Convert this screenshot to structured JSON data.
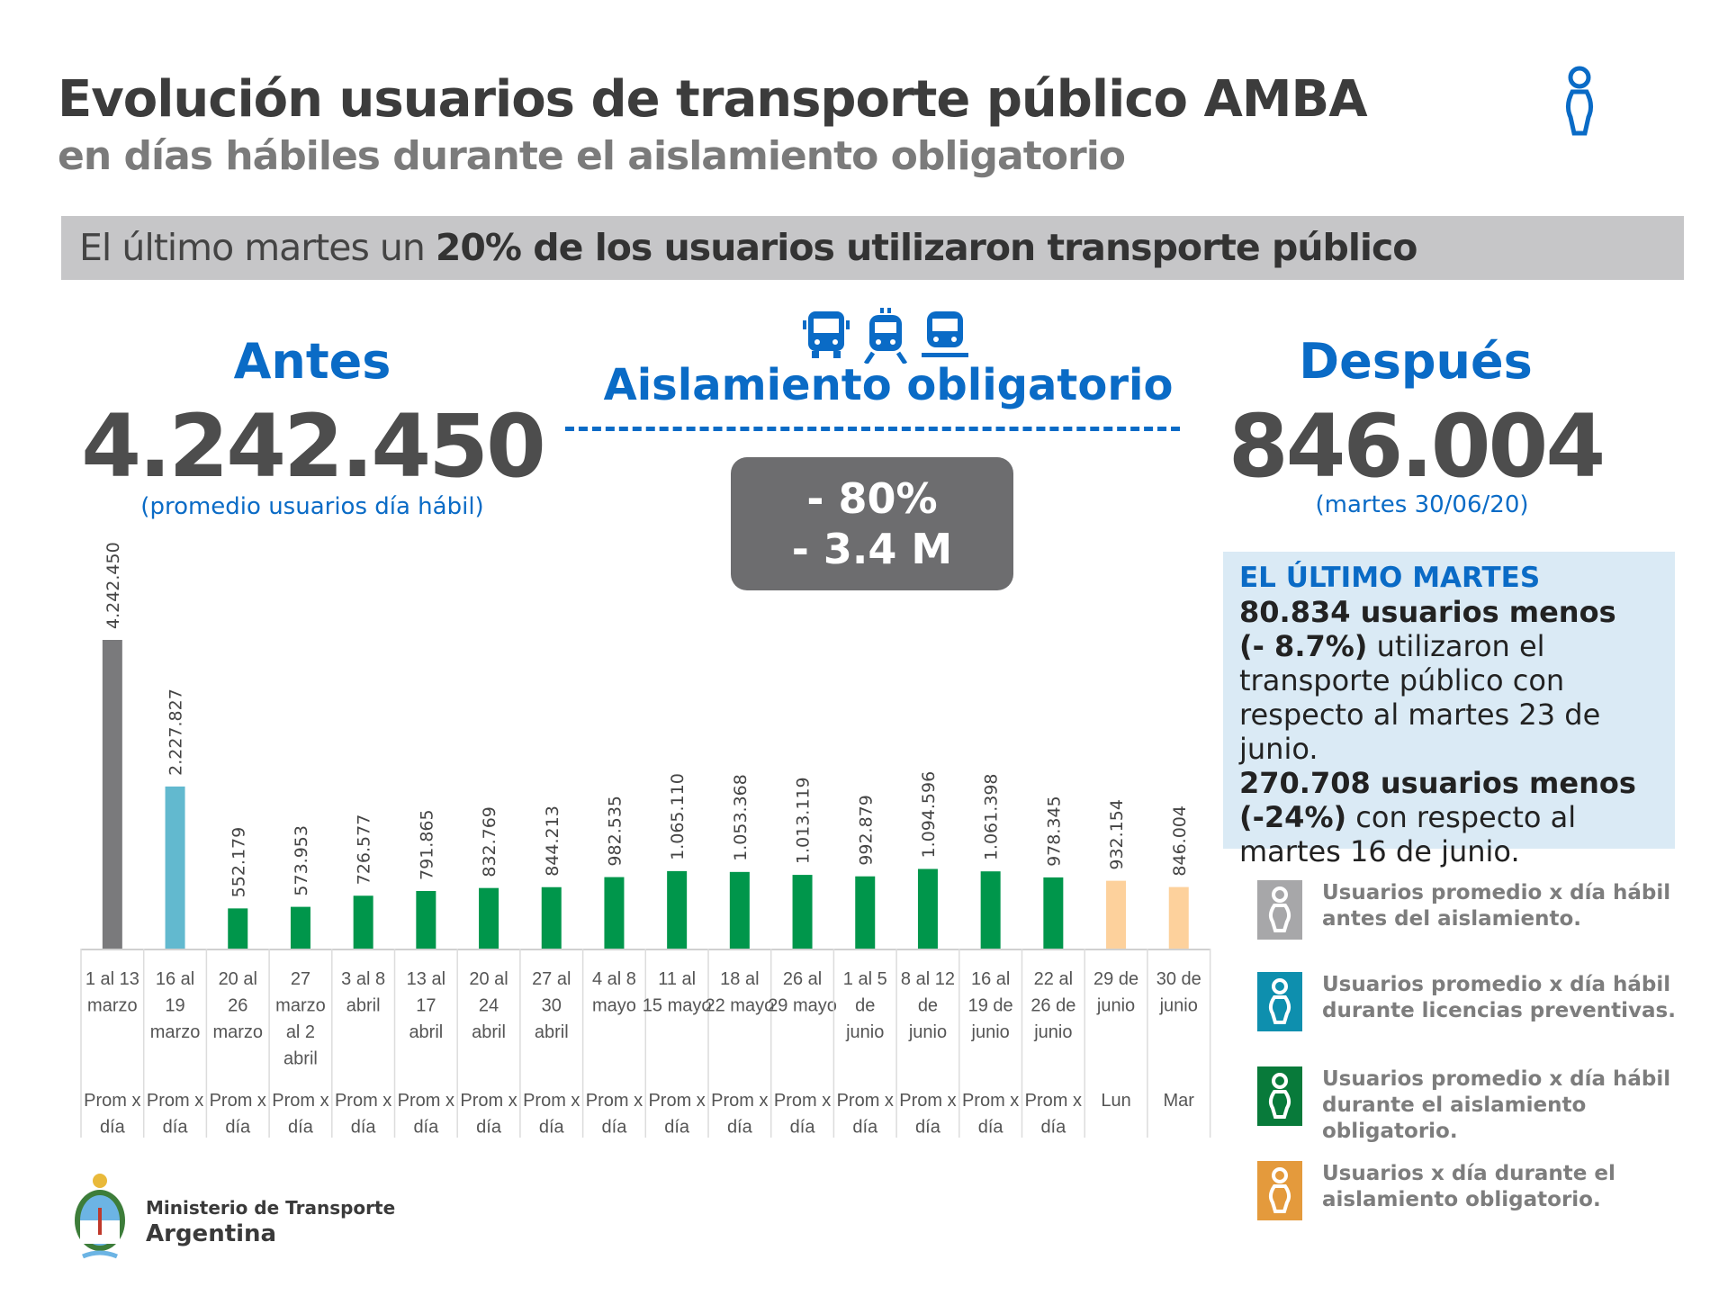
{
  "header": {
    "title": "Evolución usuarios de transporte público AMBA",
    "subtitle": "en días hábiles durante el aislamiento obligatorio"
  },
  "banner": {
    "prefix": "El último martes un ",
    "bold": "20% de los usuarios utilizaron transporte público"
  },
  "antes": {
    "label": "Antes",
    "value": "4.242.450",
    "note": "(promedio usuarios día hábil)"
  },
  "middle": {
    "label": "Aislamiento obligatorio",
    "pct": "- 80%",
    "abs": "- 3.4 M",
    "icons": [
      "bus-icon",
      "train-icon",
      "tram-icon"
    ]
  },
  "despues": {
    "label": "Después",
    "value": "846.004",
    "note": "(martes 30/06/20)"
  },
  "info": {
    "heading": "EL ÚLTIMO MARTES",
    "l1_bold": "80.834 usuarios menos",
    "l2_bold": " (- 8.7%)",
    "l2_rest": " utilizaron el transporte público con respecto al martes 23 de junio.",
    "l3_bold": "270.708 usuarios menos",
    "l4_bold": "(-24%)",
    "l4_rest": " con respecto al martes 16 de junio."
  },
  "legend": [
    {
      "text": "Usuarios promedio x día hábil antes del aislamiento.",
      "color": "#a7a7a9"
    },
    {
      "text": "Usuarios promedio x día hábil durante licencias preventivas.",
      "color": "#0e8fae"
    },
    {
      "text": "Usuarios promedio x día hábil durante el aislamiento obligatorio.",
      "color": "#087a3a"
    },
    {
      "text": "Usuarios x día durante el aislamiento obligatorio.",
      "color": "#e49a3c"
    }
  ],
  "logo": {
    "line1": "Ministerio de Transporte",
    "line2": "Argentina"
  },
  "chart_data": {
    "type": "bar",
    "categories": [
      "1 al 13 marzo",
      "16 al 19 marzo",
      "20 al 26 marzo",
      "27 marzo al 2 abril",
      "3 al 8 abril",
      "13 al 17 abril",
      "20 al 24 abril",
      "27 al 30 abril",
      "4 al 8 mayo",
      "11 al 15 mayo",
      "18 al 22 mayo",
      "26 al 29 mayo",
      "1 al 5 de junio",
      "8 al 12 de junio",
      "16 al 19 de junio",
      "22 al 26 de junio",
      "29 de junio",
      "30 de junio"
    ],
    "sublabels": [
      "Prom x día",
      "Prom x día",
      "Prom x día",
      "Prom x día",
      "Prom x día",
      "Prom x día",
      "Prom x día",
      "Prom x día",
      "Prom x día",
      "Prom x día",
      "Prom x día",
      "Prom x día",
      "Prom x día",
      "Prom x día",
      "Prom x día",
      "Prom x día",
      "Lun",
      "Mar"
    ],
    "values": [
      4242450,
      2227827,
      552179,
      573953,
      726577,
      791865,
      832769,
      844213,
      982535,
      1065110,
      1053368,
      1013119,
      992879,
      1094596,
      1061398,
      978345,
      932154,
      846004
    ],
    "value_labels": [
      "4.242.450",
      "2.227.827",
      "552.179",
      "573.953",
      "726.577",
      "791.865",
      "832.769",
      "844.213",
      "982.535",
      "1.065.110",
      "1.053.368",
      "1.013.119",
      "992.879",
      "1.094.596",
      "1.061.398",
      "978.345",
      "932.154",
      "846.004"
    ],
    "colors": [
      "#7a7a7c",
      "#62b9cf",
      "#00964b",
      "#00964b",
      "#00964b",
      "#00964b",
      "#00964b",
      "#00964b",
      "#00964b",
      "#00964b",
      "#00964b",
      "#00964b",
      "#00964b",
      "#00964b",
      "#00964b",
      "#00964b",
      "#fdd19c",
      "#fdd19c"
    ],
    "ylim": [
      0,
      4242450
    ],
    "grid": false
  }
}
